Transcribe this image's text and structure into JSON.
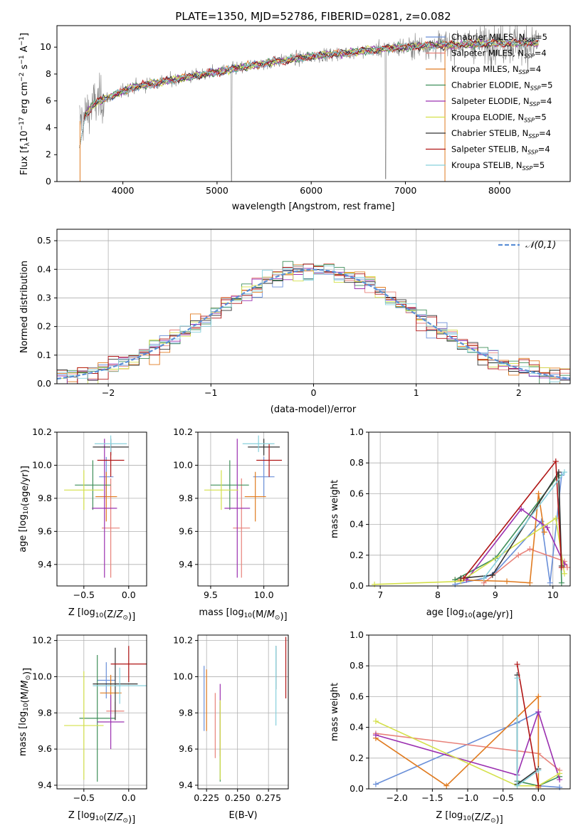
{
  "chart_data": [
    {
      "type": "line",
      "title": "PLATE=1350, MJD=52786, FIBERID=0281, z=0.082",
      "xlabel": "wavelength [Angstrom, rest frame]",
      "ylabel": "Flux [f_λ10^-17 erg cm^-2 s^-1 A^-1]",
      "xlim": [
        3300,
        8750
      ],
      "ylim": [
        0,
        11.6
      ],
      "xticks": [
        4000,
        5000,
        6000,
        7000,
        8000
      ],
      "yticks": [
        0,
        2,
        4,
        6,
        8,
        10
      ],
      "grid": false,
      "legend_position": "right",
      "series": [
        {
          "name": "Chabrier MILES, N_SSP=5",
          "color": "#6a8fd8"
        },
        {
          "name": "Salpeter MILES, N_SSP=4",
          "color": "#e8827a"
        },
        {
          "name": "Kroupa MILES, N_SSP=4",
          "color": "#e07b20"
        },
        {
          "name": "Chabrier ELODIE, N_SSP=5",
          "color": "#3f8f5a"
        },
        {
          "name": "Salpeter ELODIE, N_SSP=4",
          "color": "#9b30b0"
        },
        {
          "name": "Kroupa ELODIE, N_SSP=5",
          "color": "#d4e04a"
        },
        {
          "name": "Chabrier STELIB, N_SSP=4",
          "color": "#333333"
        },
        {
          "name": "Salpeter STELIB, N_SSP=4",
          "color": "#b01515"
        },
        {
          "name": "Kroupa STELIB, N_SSP=5",
          "color": "#87d0dc"
        }
      ],
      "data_color": "#808080",
      "model_trend": {
        "x": [
          3550,
          3700,
          3900,
          4100,
          4400,
          4800,
          5200,
          5600,
          6000,
          6400,
          6800,
          7200,
          7600,
          8000,
          8400
        ],
        "y": [
          4.5,
          5.8,
          6.4,
          7.0,
          7.4,
          7.9,
          8.4,
          8.9,
          9.3,
          9.6,
          9.9,
          10.1,
          10.2,
          10.3,
          10.3
        ]
      }
    },
    {
      "type": "bar",
      "title": "",
      "xlabel": "(data-model)/error",
      "ylabel": "Normed distribution",
      "xlim": [
        -2.5,
        2.5
      ],
      "ylim": [
        0,
        0.54
      ],
      "xticks": [
        -2,
        -1,
        0,
        1,
        2
      ],
      "yticks": [
        0.0,
        0.1,
        0.2,
        0.3,
        0.4,
        0.5
      ],
      "grid": true,
      "legend_position": "top-right",
      "legend": "𝒩(0,1)",
      "reference_curve": {
        "name": "𝒩(0,1)",
        "color": "#5b8fd6",
        "style": "dashed"
      }
    },
    {
      "type": "scatter",
      "xlabel": "Z [log10(Z/Z⊙)]",
      "ylabel": "age  [log10(age/yr)]",
      "xlim": [
        -0.8,
        0.2
      ],
      "ylim": [
        9.27,
        10.2
      ],
      "xticks": [
        -0.5,
        0.0
      ],
      "yticks": [
        9.4,
        9.6,
        9.8,
        10.0,
        10.2
      ],
      "grid": true,
      "points": [
        {
          "x": -0.25,
          "y": 9.93,
          "xerr": 0.08,
          "yerr": 0.12
        },
        {
          "x": -0.2,
          "y": 9.62,
          "xerr": 0.1,
          "yerr": 0.3
        },
        {
          "x": -0.25,
          "y": 9.81,
          "xerr": 0.12,
          "yerr": 0.15
        },
        {
          "x": -0.4,
          "y": 9.88,
          "xerr": 0.2,
          "yerr": 0.15
        },
        {
          "x": -0.27,
          "y": 9.74,
          "xerr": 0.14,
          "yerr": 0.42
        },
        {
          "x": -0.5,
          "y": 9.85,
          "xerr": 0.22,
          "yerr": 0.12
        },
        {
          "x": -0.2,
          "y": 10.11,
          "xerr": 0.2,
          "yerr": 0.05
        },
        {
          "x": -0.2,
          "y": 10.03,
          "xerr": 0.15,
          "yerr": 0.1
        },
        {
          "x": -0.2,
          "y": 10.13,
          "xerr": 0.18,
          "yerr": 0.05
        }
      ]
    },
    {
      "type": "scatter",
      "xlabel": "mass [log10(M/M⊙)]",
      "xlim": [
        9.38,
        10.23
      ],
      "ylim": [
        9.27,
        10.2
      ],
      "xticks": [
        9.5,
        10.0
      ],
      "yticks": [
        9.4,
        9.6,
        9.8,
        10.0,
        10.2
      ],
      "grid": true,
      "points": [
        {
          "x": 10.0,
          "y": 9.93,
          "xerr": 0.1,
          "yerr": 0.12
        },
        {
          "x": 9.79,
          "y": 9.62,
          "xerr": 0.08,
          "yerr": 0.3
        },
        {
          "x": 9.92,
          "y": 9.81,
          "xerr": 0.1,
          "yerr": 0.15
        },
        {
          "x": 9.68,
          "y": 9.88,
          "xerr": 0.18,
          "yerr": 0.15
        },
        {
          "x": 9.75,
          "y": 9.74,
          "xerr": 0.12,
          "yerr": 0.42
        },
        {
          "x": 9.6,
          "y": 9.85,
          "xerr": 0.16,
          "yerr": 0.12
        },
        {
          "x": 10.0,
          "y": 10.11,
          "xerr": 0.15,
          "yerr": 0.05
        },
        {
          "x": 10.05,
          "y": 10.03,
          "xerr": 0.12,
          "yerr": 0.1
        },
        {
          "x": 9.95,
          "y": 10.13,
          "xerr": 0.15,
          "yerr": 0.05
        }
      ]
    },
    {
      "type": "line",
      "xlabel": "age  [log10(age/yr)]",
      "ylabel": "mass weight",
      "xlim": [
        6.8,
        10.3
      ],
      "ylim": [
        0,
        1.0
      ],
      "xticks": [
        7,
        8,
        9,
        10
      ],
      "yticks": [
        0.0,
        0.2,
        0.4,
        0.6,
        0.8,
        1.0
      ],
      "grid": true,
      "series": [
        {
          "x": [
            8.3,
            8.8,
            9.0,
            9.8,
            9.95,
            10.15
          ],
          "y": [
            0.01,
            0.05,
            0.09,
            0.42,
            0.02,
            0.72
          ]
        },
        {
          "x": [
            8.8,
            9.4,
            9.6,
            10.2,
            10.25
          ],
          "y": [
            0.02,
            0.2,
            0.24,
            0.16,
            0.12
          ]
        },
        {
          "x": [
            8.3,
            9.2,
            9.6,
            9.75,
            9.85
          ],
          "y": [
            0.04,
            0.03,
            0.02,
            0.6,
            0.35
          ]
        },
        {
          "x": [
            8.3,
            9.0,
            10.1,
            10.15
          ],
          "y": [
            0.04,
            0.18,
            0.72,
            0.02
          ]
        },
        {
          "x": [
            8.5,
            9.45,
            9.9,
            10.2
          ],
          "y": [
            0.04,
            0.5,
            0.38,
            0.14
          ]
        },
        {
          "x": [
            6.9,
            8.4,
            10.05,
            10.2
          ],
          "y": [
            0.01,
            0.03,
            0.44,
            0.08
          ]
        },
        {
          "x": [
            8.4,
            8.95,
            10.1,
            10.15
          ],
          "y": [
            0.05,
            0.07,
            0.74,
            0.13
          ]
        },
        {
          "x": [
            8.45,
            10.05,
            10.15
          ],
          "y": [
            0.05,
            0.81,
            0.12
          ]
        },
        {
          "x": [
            8.8,
            10.2
          ],
          "y": [
            0.05,
            0.74
          ]
        }
      ]
    },
    {
      "type": "scatter",
      "xlabel": "Z [log10(Z/Z⊙)]",
      "ylabel": "mass [log10(M/M⊙)]",
      "xlim": [
        -0.8,
        0.2
      ],
      "ylim": [
        9.38,
        10.23
      ],
      "xticks": [
        -0.5,
        0.0
      ],
      "yticks": [
        9.4,
        9.6,
        9.8,
        10.0,
        10.2
      ],
      "grid": true,
      "points": [
        {
          "x": -0.25,
          "y": 9.98,
          "xerr": 0.1,
          "yerr": 0.1
        },
        {
          "x": -0.15,
          "y": 9.81,
          "xerr": 0.1,
          "yerr": 0.05
        },
        {
          "x": -0.2,
          "y": 9.91,
          "xerr": 0.12,
          "yerr": 0.1
        },
        {
          "x": -0.35,
          "y": 9.77,
          "xerr": 0.2,
          "yerr": 0.35
        },
        {
          "x": -0.2,
          "y": 9.75,
          "xerr": 0.15,
          "yerr": 0.15
        },
        {
          "x": -0.5,
          "y": 9.73,
          "xerr": 0.22,
          "yerr": 0.3
        },
        {
          "x": -0.15,
          "y": 9.96,
          "xerr": 0.25,
          "yerr": 0.2
        },
        {
          "x": 0.0,
          "y": 10.07,
          "xerr": 0.2,
          "yerr": 0.1
        },
        {
          "x": -0.1,
          "y": 9.95,
          "xerr": 0.3,
          "yerr": 0.1
        }
      ]
    },
    {
      "type": "scatter",
      "xlabel": "E(B-V)",
      "xlim": [
        0.218,
        0.291
      ],
      "ylim": [
        9.38,
        10.23
      ],
      "xticks": [
        0.225,
        0.25,
        0.275
      ],
      "yticks": [
        9.4,
        9.6,
        9.8,
        10.0,
        10.2
      ],
      "grid": true,
      "points": [
        {
          "x": 0.223,
          "y": 9.88,
          "yerr": 0.18
        },
        {
          "x": 0.232,
          "y": 9.73,
          "yerr": 0.18
        },
        {
          "x": 0.225,
          "y": 9.87,
          "yerr": 0.17
        },
        {
          "x": 0.236,
          "y": 9.64,
          "yerr": 0.22
        },
        {
          "x": 0.236,
          "y": 9.76,
          "yerr": 0.2
        },
        {
          "x": 0.236,
          "y": 9.65,
          "yerr": 0.22
        },
        {
          "x": 0.281,
          "y": 10.05,
          "yerr": 0.12
        },
        {
          "x": 0.289,
          "y": 10.05,
          "yerr": 0.17
        },
        {
          "x": 0.281,
          "y": 9.95,
          "yerr": 0.22
        }
      ]
    },
    {
      "type": "line",
      "xlabel": "Z [log10(Z/Z⊙)]",
      "ylabel": "mass weight",
      "xlim": [
        -2.4,
        0.45
      ],
      "ylim": [
        0,
        1.0
      ],
      "xticks": [
        -2.0,
        -1.5,
        -1.0,
        -0.5,
        0.0
      ],
      "yticks": [
        0.0,
        0.2,
        0.4,
        0.6,
        0.8,
        1.0
      ],
      "grid": true,
      "series": [
        {
          "x": [
            -2.3,
            -0.3,
            0.0,
            0.0,
            0.3
          ],
          "y": [
            0.03,
            0.43,
            0.5,
            0.02,
            0.01
          ]
        },
        {
          "x": [
            -2.3,
            0.0,
            0.3
          ],
          "y": [
            0.36,
            0.23,
            0.12
          ]
        },
        {
          "x": [
            -2.3,
            -1.3,
            0.0,
            0.0
          ],
          "y": [
            0.33,
            0.02,
            0.6,
            0.01
          ]
        },
        {
          "x": [
            -0.3,
            0.0,
            0.3
          ],
          "y": [
            0.05,
            0.02,
            0.08
          ]
        },
        {
          "x": [
            -2.3,
            -0.3,
            0.0,
            0.3
          ],
          "y": [
            0.35,
            0.09,
            0.5,
            0.06
          ]
        },
        {
          "x": [
            -2.3,
            -0.3,
            0.0,
            0.3
          ],
          "y": [
            0.44,
            0.02,
            0.02,
            0.1
          ]
        },
        {
          "x": [
            -0.3,
            -0.3,
            0.0
          ],
          "y": [
            0.74,
            0.03,
            0.13
          ]
        },
        {
          "x": [
            -0.3,
            0.0
          ],
          "y": [
            0.81,
            0.02
          ]
        },
        {
          "x": [
            -0.3,
            -0.3,
            0.0
          ],
          "y": [
            0.72,
            0.02,
            0.12
          ]
        }
      ]
    }
  ]
}
